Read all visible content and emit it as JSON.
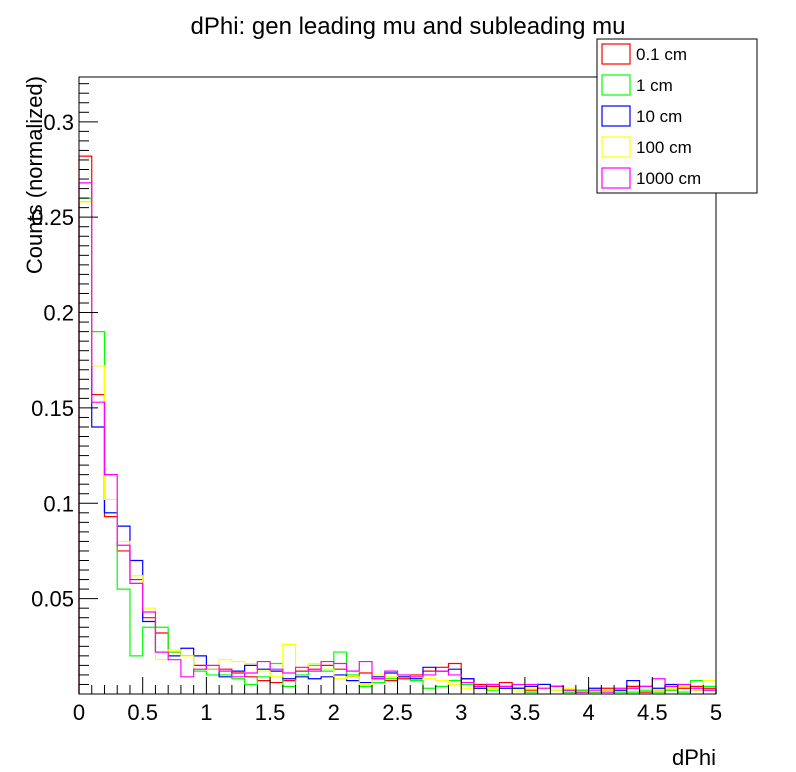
{
  "chart_data": {
    "type": "histogram",
    "title": "dPhi: gen leading mu and subleading mu",
    "xlabel": "dPhi",
    "ylabel": "Counts (normalized)",
    "xlim": [
      0,
      5
    ],
    "ylim": [
      0,
      0.3235
    ],
    "x_ticks": [
      "0",
      "0.5",
      "1",
      "1.5",
      "2",
      "2.5",
      "3",
      "3.5",
      "4",
      "4.5",
      "5"
    ],
    "y_ticks": [
      "0.05",
      "0.1",
      "0.15",
      "0.2",
      "0.25",
      "0.3"
    ],
    "bins": 50,
    "bin_width": 0.1,
    "legend_position": "top-right",
    "grid": false,
    "series": [
      {
        "name": "0.1 cm",
        "color": "#ff0000",
        "values": [
          0.282,
          0.157,
          0.093,
          0.075,
          0.06,
          0.04,
          0.032,
          0.022,
          0.02,
          0.015,
          0.013,
          0.013,
          0.011,
          0.009,
          0.007,
          0.006,
          0.007,
          0.012,
          0.013,
          0.015,
          0.013,
          0.009,
          0.011,
          0.008,
          0.007,
          0.008,
          0.01,
          0.012,
          0.014,
          0.016,
          0.008,
          0.005,
          0.004,
          0.006,
          0.003,
          0.002,
          0.005,
          0.004,
          0.001,
          0.002,
          0.001,
          0.003,
          0.002,
          0.004,
          0.001,
          0.002,
          0.002,
          0.003,
          0.004,
          0.003
        ]
      },
      {
        "name": "1 cm",
        "color": "#00ff00",
        "values": [
          0.26,
          0.19,
          0.095,
          0.055,
          0.02,
          0.035,
          0.035,
          0.022,
          0.02,
          0.012,
          0.01,
          0.01,
          0.008,
          0.005,
          0.009,
          0.016,
          0.004,
          0.01,
          0.015,
          0.012,
          0.022,
          0.01,
          0.004,
          0.006,
          0.008,
          0.009,
          0.007,
          0.003,
          0.004,
          0.007,
          0.005,
          0.003,
          0.002,
          0.004,
          0.003,
          0.001,
          0.003,
          0.002,
          0.001,
          0.002,
          0.001,
          0.002,
          0.001,
          0.001,
          0.002,
          0.001,
          0.002,
          0.001,
          0.007,
          0.004
        ]
      },
      {
        "name": "10 cm",
        "color": "#0000ff",
        "values": [
          0.258,
          0.14,
          0.095,
          0.088,
          0.07,
          0.038,
          0.022,
          0.02,
          0.024,
          0.02,
          0.013,
          0.009,
          0.012,
          0.015,
          0.013,
          0.012,
          0.008,
          0.009,
          0.008,
          0.009,
          0.01,
          0.007,
          0.006,
          0.009,
          0.011,
          0.009,
          0.008,
          0.014,
          0.012,
          0.013,
          0.008,
          0.003,
          0.005,
          0.003,
          0.003,
          0.004,
          0.005,
          0.004,
          0.002,
          0.001,
          0.003,
          0.002,
          0.002,
          0.007,
          0.004,
          0.003,
          0.005,
          0.004,
          0.002,
          0.002
        ]
      },
      {
        "name": "100 cm",
        "color": "#ffff00",
        "values": [
          0.258,
          0.172,
          0.102,
          0.08,
          0.062,
          0.045,
          0.018,
          0.023,
          0.02,
          0.013,
          0.013,
          0.018,
          0.017,
          0.016,
          0.012,
          0.009,
          0.026,
          0.014,
          0.016,
          0.013,
          0.008,
          0.009,
          0.005,
          0.01,
          0.009,
          0.01,
          0.009,
          0.008,
          0.007,
          0.005,
          0.003,
          0.004,
          0.003,
          0.004,
          0.002,
          0.003,
          0.003,
          0.002,
          0.003,
          0.001,
          0.002,
          0.002,
          0.003,
          0.003,
          0.004,
          0.002,
          0.003,
          0.004,
          0.002,
          0.007
        ]
      },
      {
        "name": "1000 cm",
        "color": "#ff00ff",
        "values": [
          0.268,
          0.153,
          0.115,
          0.078,
          0.058,
          0.043,
          0.022,
          0.018,
          0.009,
          0.013,
          0.015,
          0.012,
          0.009,
          0.011,
          0.017,
          0.013,
          0.011,
          0.014,
          0.012,
          0.017,
          0.016,
          0.012,
          0.017,
          0.008,
          0.012,
          0.01,
          0.009,
          0.01,
          0.012,
          0.01,
          0.006,
          0.004,
          0.005,
          0.004,
          0.005,
          0.005,
          0.003,
          0.004,
          0.002,
          0.001,
          0.002,
          0.001,
          0.003,
          0.003,
          0.004,
          0.008,
          0.004,
          0.005,
          0.003,
          0.002
        ]
      }
    ]
  }
}
